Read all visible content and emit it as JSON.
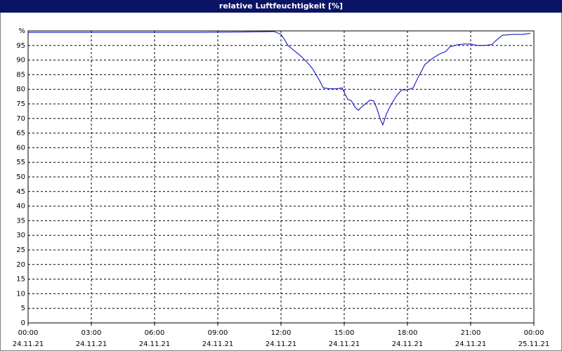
{
  "chart_data": {
    "type": "line",
    "title": "relative Luftfeuchtigkeit [%]",
    "x": [
      0,
      2,
      4,
      6,
      8,
      10,
      11.67,
      12,
      12.17,
      12.33,
      12.67,
      12.83,
      13,
      13.33,
      13.5,
      13.67,
      13.83,
      14,
      14.33,
      14.67,
      14.9,
      15,
      15.17,
      15.33,
      15.5,
      15.67,
      15.83,
      16,
      16.23,
      16.4,
      16.57,
      16.7,
      16.83,
      17,
      17.17,
      17.33,
      17.5,
      17.73,
      18,
      18.27,
      18.5,
      18.83,
      19.17,
      19.5,
      19.83,
      20,
      20.33,
      20.67,
      21,
      21.33,
      21.67,
      22,
      22.17,
      22.5,
      23,
      23.5,
      23.83
    ],
    "series": [
      {
        "color": "#0000c0",
        "values": [
          99.5,
          99.5,
          99.5,
          99.5,
          99.5,
          99.6,
          99.8,
          98.8,
          97,
          95,
          93,
          92,
          91,
          88.5,
          87,
          85,
          83,
          80.5,
          80.2,
          80.2,
          80.5,
          79,
          76.5,
          76.2,
          74,
          72.8,
          74,
          75,
          76.3,
          76,
          73,
          70,
          67.8,
          71.5,
          74,
          76,
          78,
          79.8,
          79.8,
          80.5,
          84,
          88.5,
          90.5,
          92,
          93,
          94.5,
          95.2,
          95.5,
          95.5,
          95,
          95,
          95.3,
          96.5,
          98.5,
          98.8,
          98.8,
          99.2
        ]
      }
    ],
    "xlim": [
      0,
      24
    ],
    "xticks": [
      {
        "value": 0,
        "label": "00:00"
      },
      {
        "value": 3,
        "label": "03:00"
      },
      {
        "value": 6,
        "label": "06:00"
      },
      {
        "value": 9,
        "label": "09:00"
      },
      {
        "value": 12,
        "label": "12:00"
      },
      {
        "value": 15,
        "label": "15:00"
      },
      {
        "value": 18,
        "label": "18:00"
      },
      {
        "value": 21,
        "label": "21:00"
      },
      {
        "value": 24,
        "label": "00:00"
      }
    ],
    "xtick_dates": [
      "24.11.21",
      "24.11.21",
      "24.11.21",
      "24.11.21",
      "24.11.21",
      "24.11.21",
      "24.11.21",
      "24.11.21",
      "25.11.21"
    ],
    "ylim": [
      0,
      100
    ],
    "yticks": [
      0,
      5,
      10,
      15,
      20,
      25,
      30,
      35,
      40,
      45,
      50,
      55,
      60,
      65,
      70,
      75,
      80,
      85,
      90,
      95,
      {
        "value": 100,
        "label": "%"
      }
    ],
    "grid": true
  }
}
